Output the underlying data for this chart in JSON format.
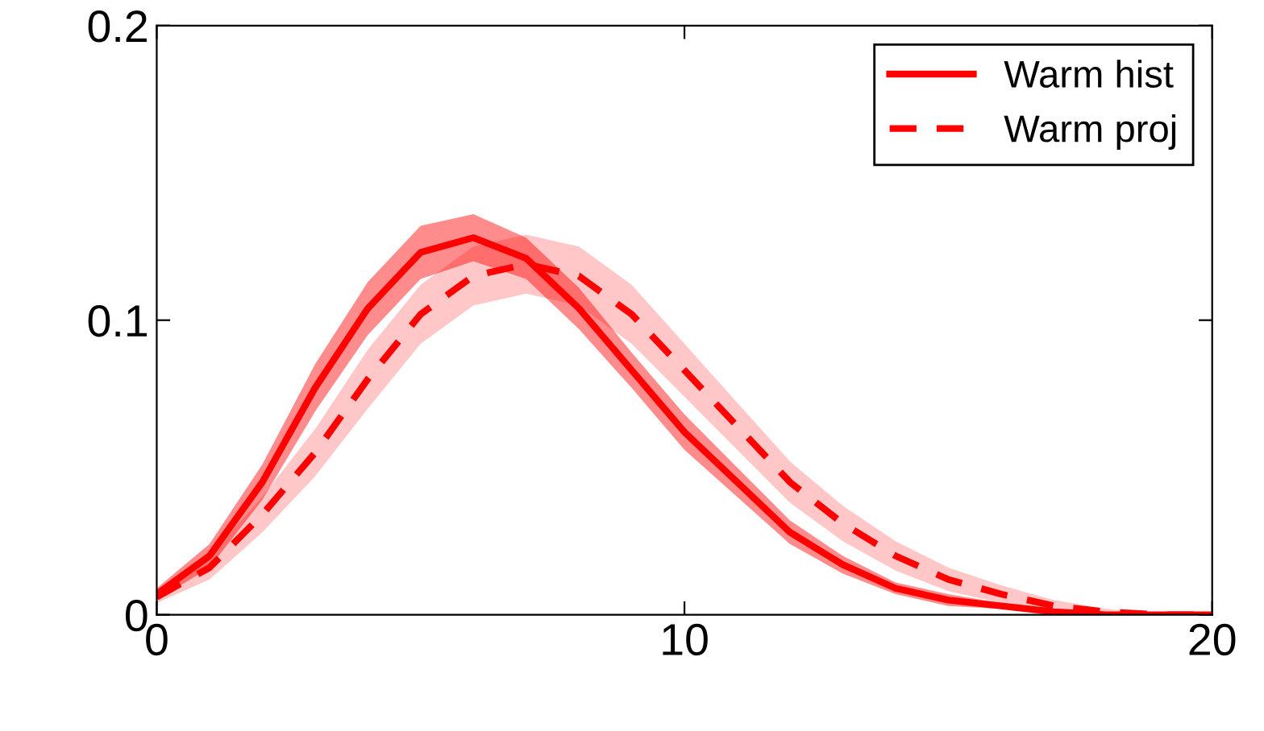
{
  "chart_data": {
    "type": "line",
    "x": [
      0,
      1,
      2,
      3,
      4,
      5,
      6,
      7,
      8,
      9,
      10,
      11,
      12,
      13,
      14,
      15,
      16,
      17,
      18,
      19,
      20
    ],
    "series": [
      {
        "name": "Warm hist",
        "color": "#ff0000",
        "line_style": "solid",
        "values": [
          0.007,
          0.02,
          0.045,
          0.077,
          0.104,
          0.123,
          0.128,
          0.121,
          0.104,
          0.083,
          0.062,
          0.045,
          0.028,
          0.017,
          0.009,
          0.005,
          0.003,
          0.001,
          0,
          0,
          0
        ],
        "lower": [
          0.005,
          0.016,
          0.039,
          0.069,
          0.095,
          0.114,
          0.12,
          0.114,
          0.097,
          0.077,
          0.056,
          0.04,
          0.024,
          0.014,
          0.007,
          0.003,
          0.002,
          0.001,
          0,
          0,
          0
        ],
        "upper": [
          0.009,
          0.024,
          0.051,
          0.085,
          0.113,
          0.132,
          0.136,
          0.128,
          0.111,
          0.089,
          0.068,
          0.05,
          0.032,
          0.02,
          0.011,
          0.007,
          0.004,
          0.001,
          0,
          0,
          0
        ]
      },
      {
        "name": "Warm proj",
        "color": "#ff0000",
        "line_style": "dashed",
        "values": [
          0.006,
          0.016,
          0.034,
          0.055,
          0.08,
          0.102,
          0.115,
          0.119,
          0.115,
          0.102,
          0.083,
          0.064,
          0.045,
          0.031,
          0.02,
          0.012,
          0.007,
          0.003,
          0.001,
          0,
          0
        ],
        "lower": [
          0.004,
          0.012,
          0.028,
          0.047,
          0.07,
          0.092,
          0.105,
          0.109,
          0.105,
          0.092,
          0.074,
          0.056,
          0.038,
          0.025,
          0.015,
          0.008,
          0.004,
          0.001,
          0,
          0,
          0
        ],
        "upper": [
          0.008,
          0.02,
          0.04,
          0.063,
          0.09,
          0.112,
          0.125,
          0.129,
          0.125,
          0.112,
          0.092,
          0.072,
          0.052,
          0.037,
          0.025,
          0.016,
          0.01,
          0.005,
          0.002,
          0,
          0
        ]
      }
    ],
    "xlim": [
      0,
      20
    ],
    "ylim": [
      0,
      0.2
    ],
    "xticks": [
      0,
      10,
      20
    ],
    "yticks": [
      0,
      0.1,
      0.2
    ],
    "legend": "top right",
    "grid": false
  }
}
